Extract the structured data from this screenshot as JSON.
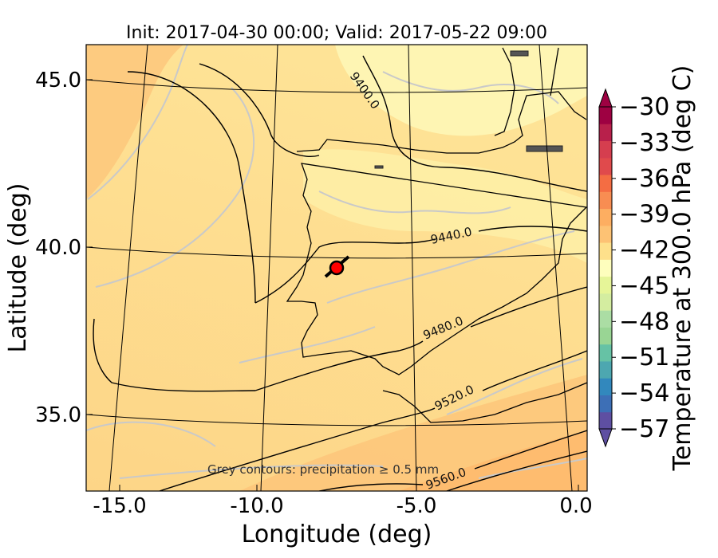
{
  "title": "Init: 2017-04-30 00:00; Valid: 2017-05-22 09:00",
  "xlabel": "Longitude (deg)",
  "ylabel": "Latitude (deg)",
  "x_ticks": [
    "-15.0",
    "-10.0",
    "-5.0",
    "0.0"
  ],
  "y_ticks": [
    "45.0",
    "40.0",
    "35.0"
  ],
  "colorbar": {
    "label": "Temperature at 300.0 hPa (deg C)",
    "ticks": [
      "−30",
      "−33",
      "−36",
      "−39",
      "−42",
      "−45",
      "−48",
      "−51",
      "−54",
      "−57"
    ],
    "colormap": "Spectral_r",
    "colors": [
      "#5e4fa2",
      "#3d6fb6",
      "#3288bd",
      "#4da7b0",
      "#66c2a5",
      "#99d594",
      "#abdda4",
      "#d4eda0",
      "#e6f598",
      "#fefebd",
      "#fee08b",
      "#fdc274",
      "#fdae61",
      "#f88d52",
      "#f46d43",
      "#e04a4c",
      "#d53e4f",
      "#b8204b",
      "#9e0142"
    ]
  },
  "contour_labels": [
    "9400.0",
    "9440.0",
    "9480.0",
    "9520.0",
    "9560.0"
  ],
  "note": "Grey contours: precipitation ≥ 0.5 mm",
  "marker_color": "#ff0000",
  "chart_data": {
    "type": "heatmap",
    "title": "Init: 2017-04-30 00:00; Valid: 2017-05-22 09:00",
    "xlabel": "Longitude (deg)",
    "ylabel": "Latitude (deg)",
    "xlim": [
      -15.8,
      0.2
    ],
    "ylim": [
      32.7,
      46.1
    ],
    "field": "Temperature at 300.0 hPa (deg C)",
    "colorbar_range": [
      -57,
      -30
    ],
    "height_contours": [
      9400.0,
      9440.0,
      9480.0,
      9520.0,
      9560.0
    ],
    "marker": {
      "lon": -7.7,
      "lat": 39.4
    }
  }
}
